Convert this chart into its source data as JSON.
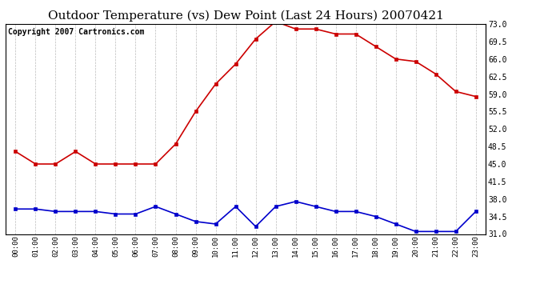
{
  "title": "Outdoor Temperature (vs) Dew Point (Last 24 Hours) 20070421",
  "copyright_text": "Copyright 2007 Cartronics.com",
  "hours": [
    "00:00",
    "01:00",
    "02:00",
    "03:00",
    "04:00",
    "05:00",
    "06:00",
    "07:00",
    "08:00",
    "09:00",
    "10:00",
    "11:00",
    "12:00",
    "13:00",
    "14:00",
    "15:00",
    "16:00",
    "17:00",
    "18:00",
    "19:00",
    "20:00",
    "21:00",
    "22:00",
    "23:00"
  ],
  "temp": [
    47.5,
    45.0,
    45.0,
    47.5,
    45.0,
    45.0,
    45.0,
    45.0,
    49.0,
    55.5,
    61.0,
    65.0,
    70.0,
    73.5,
    72.0,
    72.0,
    71.0,
    71.0,
    68.5,
    66.0,
    65.5,
    63.0,
    59.5,
    58.5
  ],
  "dew": [
    36.0,
    36.0,
    35.5,
    35.5,
    35.5,
    35.0,
    35.0,
    36.5,
    35.0,
    33.5,
    33.0,
    36.5,
    32.5,
    36.5,
    37.5,
    36.5,
    35.5,
    35.5,
    34.5,
    33.0,
    31.5,
    31.5,
    31.5,
    35.5
  ],
  "temp_color": "#cc0000",
  "dew_color": "#0000cc",
  "bg_color": "#ffffff",
  "grid_color": "#aaaaaa",
  "ylim": [
    31.0,
    73.0
  ],
  "yticks_right": [
    31.0,
    34.5,
    38.0,
    41.5,
    45.0,
    48.5,
    52.0,
    55.5,
    59.0,
    62.5,
    66.0,
    69.5,
    73.0
  ],
  "title_fontsize": 11,
  "copyright_fontsize": 7,
  "markersize": 3,
  "linewidth": 1.2
}
